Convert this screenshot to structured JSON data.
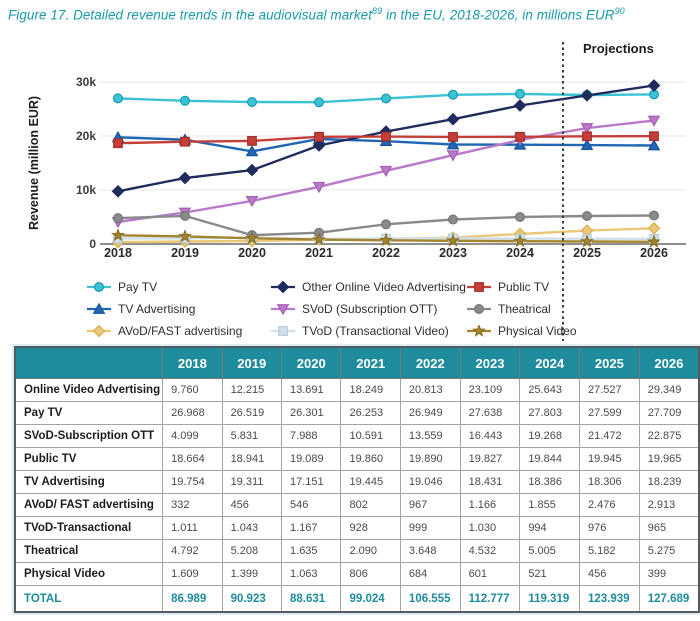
{
  "figure": {
    "title_prefix": "Figure 17. Detailed revenue trends in the audiovisual market",
    "sup1": "89",
    "title_mid": " in the EU, 2018-2026, in millions EUR",
    "sup2": "90"
  },
  "chart_data": {
    "type": "line",
    "ylabel": "Revenue (million EUR)",
    "x": [
      2018,
      2019,
      2020,
      2021,
      2022,
      2023,
      2024,
      2025,
      2026
    ],
    "ylim": [
      0,
      32000
    ],
    "grid": true,
    "legend_position": "bottom",
    "projection_label": "Projections",
    "projection_divider_between": [
      2024,
      2025
    ],
    "yticks": [
      {
        "v": 0,
        "label": "0"
      },
      {
        "v": 10000,
        "label": "10k"
      },
      {
        "v": 20000,
        "label": "20k"
      },
      {
        "v": 30000,
        "label": "30k"
      }
    ],
    "series": [
      {
        "name": "Pay TV",
        "color": "#3BC3D5",
        "edge": "#179AAD",
        "marker": "circle",
        "values": [
          26968,
          26519,
          26301,
          26253,
          26949,
          27638,
          27803,
          27599,
          27709
        ]
      },
      {
        "name": "TV Advertising",
        "color": "#2166B4",
        "edge": "#17529B",
        "marker": "triangle-up",
        "values": [
          19754,
          19311,
          17151,
          19445,
          19046,
          18431,
          18386,
          18306,
          18239
        ]
      },
      {
        "name": "AVoD/FAST advertising",
        "color": "#EBC776",
        "edge": "#D9AE4F",
        "marker": "diamond",
        "values": [
          332,
          456,
          546,
          802,
          967,
          1166,
          1855,
          2476,
          2913
        ]
      },
      {
        "name": "Other Online Video Advertising",
        "color": "#212C5E",
        "edge": "#212C5E",
        "marker": "diamond",
        "values": [
          9760,
          12215,
          13691,
          18249,
          20813,
          23109,
          25643,
          27527,
          29349
        ]
      },
      {
        "name": "SVoD (Subscription OTT)",
        "color": "#BA79C8",
        "edge": "#A55FB5",
        "marker": "triangle-down",
        "values": [
          4099,
          5831,
          7988,
          10591,
          13559,
          16443,
          19268,
          21472,
          22875
        ]
      },
      {
        "name": "TVoD (Transactional Video)",
        "color": "#CFE0EB",
        "edge": "#B7CDDA",
        "marker": "square",
        "values": [
          1011,
          1043,
          1167,
          928,
          999,
          1030,
          994,
          976,
          965
        ]
      },
      {
        "name": "Public TV",
        "color": "#C53E37",
        "edge": "#A32F2B",
        "marker": "square",
        "values": [
          18664,
          18941,
          19089,
          19860,
          19890,
          19827,
          19844,
          19945,
          19965
        ]
      },
      {
        "name": "Theatrical",
        "color": "#8A8A8A",
        "edge": "#767676",
        "marker": "circle",
        "values": [
          4792,
          5208,
          1635,
          2090,
          3648,
          4532,
          5005,
          5182,
          5275
        ]
      },
      {
        "name": "Physical Video",
        "color": "#A5842F",
        "edge": "#8C6F24",
        "marker": "star",
        "values": [
          1609,
          1399,
          1063,
          806,
          684,
          601,
          521,
          456,
          399
        ]
      }
    ]
  },
  "table": {
    "columns": [
      "",
      "2018",
      "2019",
      "2020",
      "2021",
      "2022",
      "2023",
      "2024",
      "2025",
      "2026"
    ],
    "rows": [
      {
        "label": "Online Video Advertising",
        "values": [
          "9.760",
          "12.215",
          "13.691",
          "18.249",
          "20.813",
          "23.109",
          "25.643",
          "27.527",
          "29.349"
        ]
      },
      {
        "label": "Pay TV",
        "values": [
          "26.968",
          "26.519",
          "26.301",
          "26.253",
          "26.949",
          "27.638",
          "27.803",
          "27.599",
          "27.709"
        ]
      },
      {
        "label": "SVoD-Subscription OTT",
        "values": [
          "4.099",
          "5.831",
          "7.988",
          "10.591",
          "13.559",
          "16.443",
          "19.268",
          "21.472",
          "22.875"
        ]
      },
      {
        "label": "Public TV",
        "values": [
          "18.664",
          "18.941",
          "19.089",
          "19.860",
          "19.890",
          "19.827",
          "19.844",
          "19.945",
          "19.965"
        ]
      },
      {
        "label": "TV Advertising",
        "values": [
          "19.754",
          "19.311",
          "17.151",
          "19.445",
          "19.046",
          "18.431",
          "18.386",
          "18.306",
          "18.239"
        ]
      },
      {
        "label": "AVoD/ FAST advertising",
        "values": [
          "332",
          "456",
          "546",
          "802",
          "967",
          "1.166",
          "1.855",
          "2.476",
          "2.913"
        ]
      },
      {
        "label": "TVoD-Transactional",
        "values": [
          "1.011",
          "1.043",
          "1.167",
          "928",
          "999",
          "1.030",
          "994",
          "976",
          "965"
        ]
      },
      {
        "label": "Theatrical",
        "values": [
          "4.792",
          "5.208",
          "1.635",
          "2.090",
          "3.648",
          "4.532",
          "5.005",
          "5.182",
          "5.275"
        ]
      },
      {
        "label": "Physical Video",
        "values": [
          "1.609",
          "1.399",
          "1.063",
          "806",
          "684",
          "601",
          "521",
          "456",
          "399"
        ]
      }
    ],
    "total": {
      "label": "TOTAL",
      "values": [
        "86.989",
        "90.923",
        "88.631",
        "99.024",
        "106.555",
        "112.777",
        "119.319",
        "123.939",
        "127.689"
      ]
    }
  }
}
